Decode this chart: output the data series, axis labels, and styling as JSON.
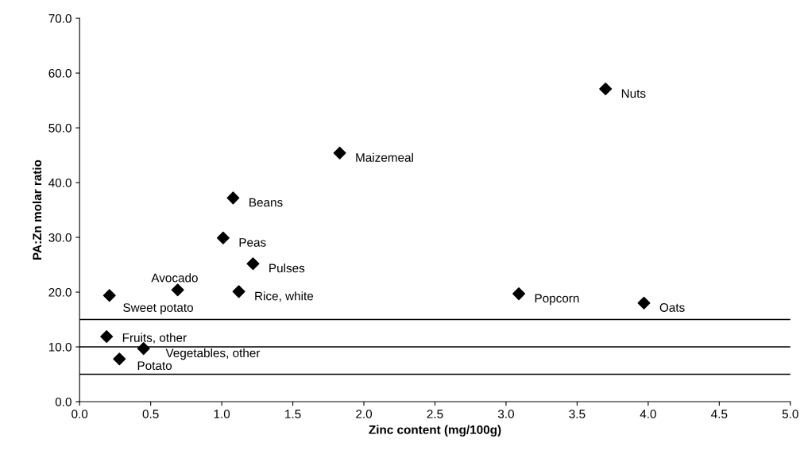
{
  "chart_data": {
    "type": "scatter",
    "xlabel": "Zinc content (mg/100g)",
    "ylabel": "PA:Zn molar ratio",
    "series": [
      {
        "color": "#000000",
        "x": [
          3.7,
          1.83,
          1.08,
          1.01,
          1.22,
          0.69,
          1.12,
          0.21,
          3.09,
          3.97,
          0.19,
          0.45,
          0.28
        ],
        "values": [
          57.1,
          45.4,
          37.2,
          29.9,
          25.2,
          20.4,
          20.1,
          19.4,
          19.7,
          18.0,
          11.9,
          9.7,
          7.8
        ]
      }
    ],
    "marker": "diamond",
    "annotations": [
      {
        "text": "Nuts",
        "x": 3.7,
        "y": 57.1
      },
      {
        "text": "Maizemeal",
        "x": 1.83,
        "y": 45.4
      },
      {
        "text": "Beans",
        "x": 1.08,
        "y": 37.2
      },
      {
        "text": "Peas",
        "x": 1.01,
        "y": 29.9
      },
      {
        "text": "Pulses",
        "x": 1.22,
        "y": 25.2
      },
      {
        "text": "Avocado",
        "x": 0.69,
        "y": 20.4
      },
      {
        "text": "Rice, white",
        "x": 1.12,
        "y": 20.1
      },
      {
        "text": "Sweet potato",
        "x": 0.21,
        "y": 19.4
      },
      {
        "text": "Popcorn",
        "x": 3.09,
        "y": 19.7
      },
      {
        "text": "Oats",
        "x": 3.97,
        "y": 18.0
      },
      {
        "text": "Fruits, other",
        "x": 0.19,
        "y": 11.9
      },
      {
        "text": "Vegetables, other",
        "x": 0.45,
        "y": 9.7
      },
      {
        "text": "Potato",
        "x": 0.28,
        "y": 7.8
      }
    ],
    "ref_lines": [
      {
        "axis": "y",
        "value": 15,
        "color": "#000000"
      },
      {
        "axis": "y",
        "value": 10,
        "color": "#000000"
      },
      {
        "axis": "y",
        "value": 5,
        "color": "#000000"
      }
    ],
    "xlim": [
      0,
      5
    ],
    "xticks": [
      {
        "value": 0,
        "label": "0.0"
      },
      {
        "value": 0.5,
        "label": "0.5"
      },
      {
        "value": 1,
        "label": "1.0"
      },
      {
        "value": 1.5,
        "label": "1.5"
      },
      {
        "value": 2,
        "label": "2.0"
      },
      {
        "value": 2.5,
        "label": "2.5"
      },
      {
        "value": 3,
        "label": "3.0"
      },
      {
        "value": 3.5,
        "label": "3.5"
      },
      {
        "value": 4,
        "label": "4.0"
      },
      {
        "value": 4.5,
        "label": "4.5"
      },
      {
        "value": 5,
        "label": "5.0"
      }
    ],
    "ylim": [
      0,
      70
    ],
    "yticks": [
      {
        "value": 0,
        "label": "0.0"
      },
      {
        "value": 10,
        "label": "10.0"
      },
      {
        "value": 20,
        "label": "20.0"
      },
      {
        "value": 30,
        "label": "30.0"
      },
      {
        "value": 40,
        "label": "40.0"
      },
      {
        "value": 50,
        "label": "50.0"
      },
      {
        "value": 60,
        "label": "60.0"
      },
      {
        "value": 70,
        "label": "70.0"
      }
    ],
    "grid": false,
    "legend": false
  }
}
